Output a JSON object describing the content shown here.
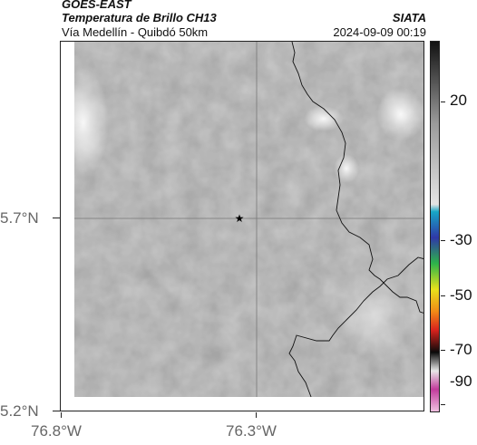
{
  "header": {
    "satellite": "GOES-EAST",
    "product": "Temperatura de Brillo CH13",
    "region": "Vía Medellín - Quibdó 50km",
    "org": "SIATA",
    "datetime": "2024-09-09 00:19"
  },
  "axes": {
    "y_ticks": [
      "5.7°N",
      "5.2°N"
    ],
    "x_ticks": [
      "76.8°W",
      "76.3°W"
    ]
  },
  "colorbar": {
    "ticks": [
      "20",
      "-30",
      "-50",
      "-70",
      "-90"
    ],
    "colors": {
      "gray_top": "#111111",
      "gray_mid": "#9a9a9a",
      "gray_light": "#e4e4e4",
      "cyan": "#17a7c7",
      "blue": "#2f38a8",
      "green": "#2db34a",
      "yellow": "#e9e21b",
      "orange": "#f08a17",
      "red": "#d8221d",
      "black": "#0a0a0a",
      "magenta": "#c23b9c"
    }
  },
  "map": {
    "marker_icon": "star-icon",
    "gridlines": true
  }
}
